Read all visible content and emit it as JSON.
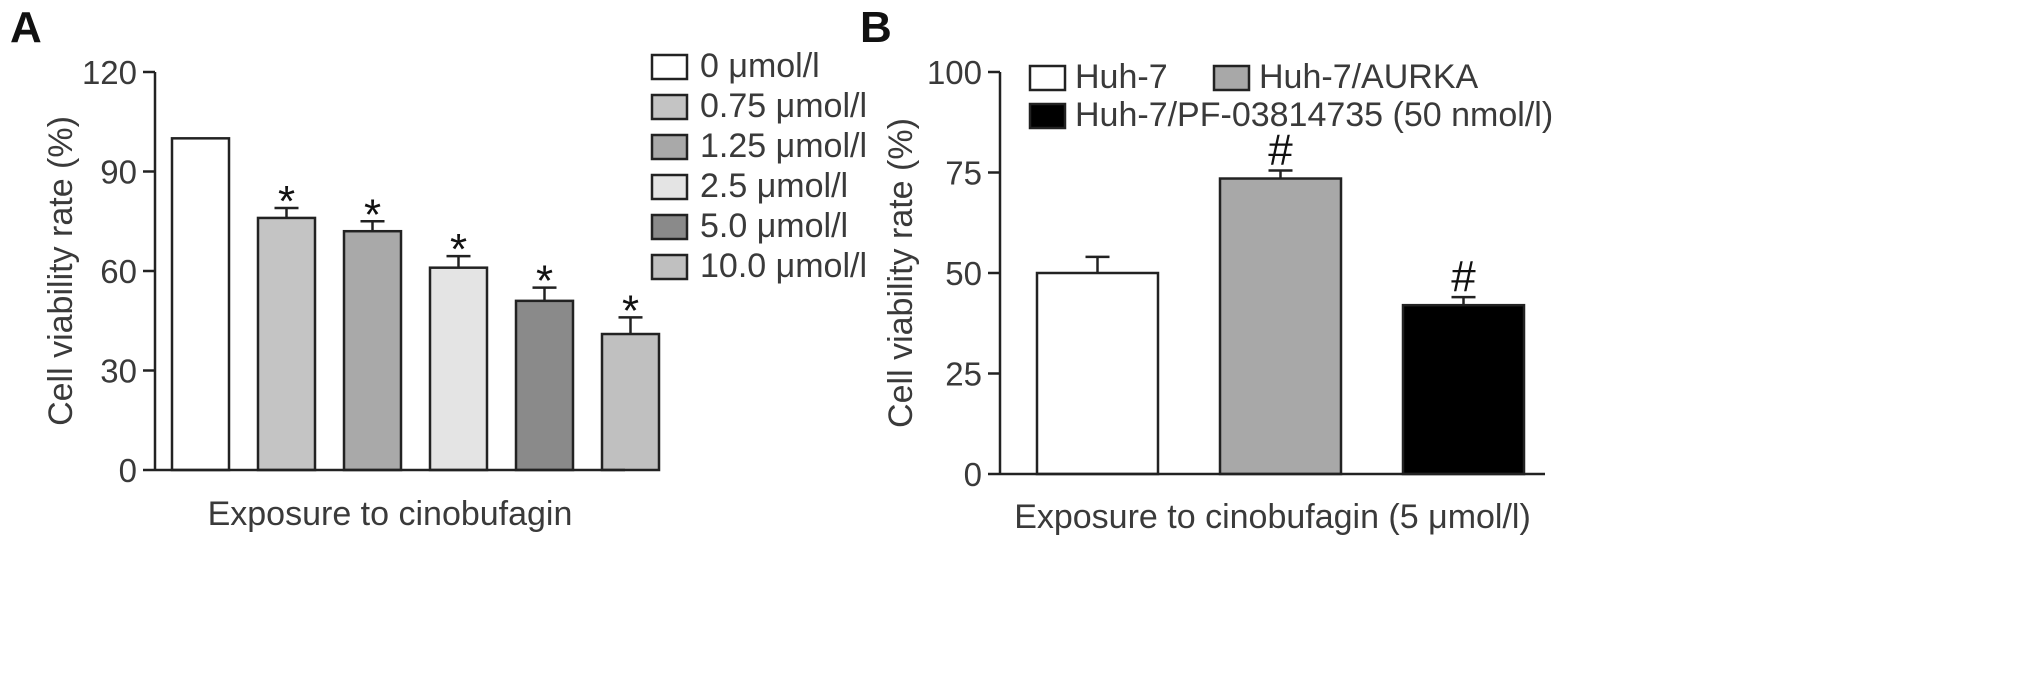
{
  "chart_data": [
    {
      "panel": "A",
      "type": "bar",
      "xlabel": "Exposure to cinobufagin",
      "ylabel": "Cell viability rate (%)",
      "ylim": [
        0,
        120
      ],
      "yticks": [
        0,
        30,
        60,
        90,
        120
      ],
      "grid": false,
      "legend_position": "top-right",
      "categories": [
        "0 μmol/l",
        "0.75 μmol/l",
        "1.25 μmol/l",
        "2.5 μmol/l",
        "5.0 μmol/l",
        "10.0 μmol/l"
      ],
      "values": [
        100,
        76,
        72,
        61,
        51,
        41
      ],
      "errors": [
        0,
        3,
        3,
        3.5,
        4,
        5
      ],
      "annotations": [
        "",
        "*",
        "*",
        "*",
        "*",
        "*"
      ],
      "colors": [
        "#ffffff",
        "#c4c4c4",
        "#a9a9a9",
        "#e4e4e4",
        "#8a8a8a",
        "#c0c0c0"
      ]
    },
    {
      "panel": "B",
      "type": "bar",
      "xlabel": "Exposure to cinobufagin (5 μmol/l)",
      "ylabel": "Cell viability rate (%)",
      "ylim": [
        0,
        100
      ],
      "yticks": [
        0,
        25,
        50,
        75,
        100
      ],
      "grid": false,
      "legend_position": "top",
      "categories": [
        "Huh-7",
        "Huh-7/AURKA",
        "Huh-7/PF-03814735 (50 nmol/l)"
      ],
      "values": [
        50,
        73.5,
        42
      ],
      "errors": [
        4,
        2,
        2
      ],
      "annotations": [
        "",
        "#",
        "#"
      ],
      "colors": [
        "#ffffff",
        "#a8a8a8",
        "#000000"
      ]
    }
  ]
}
